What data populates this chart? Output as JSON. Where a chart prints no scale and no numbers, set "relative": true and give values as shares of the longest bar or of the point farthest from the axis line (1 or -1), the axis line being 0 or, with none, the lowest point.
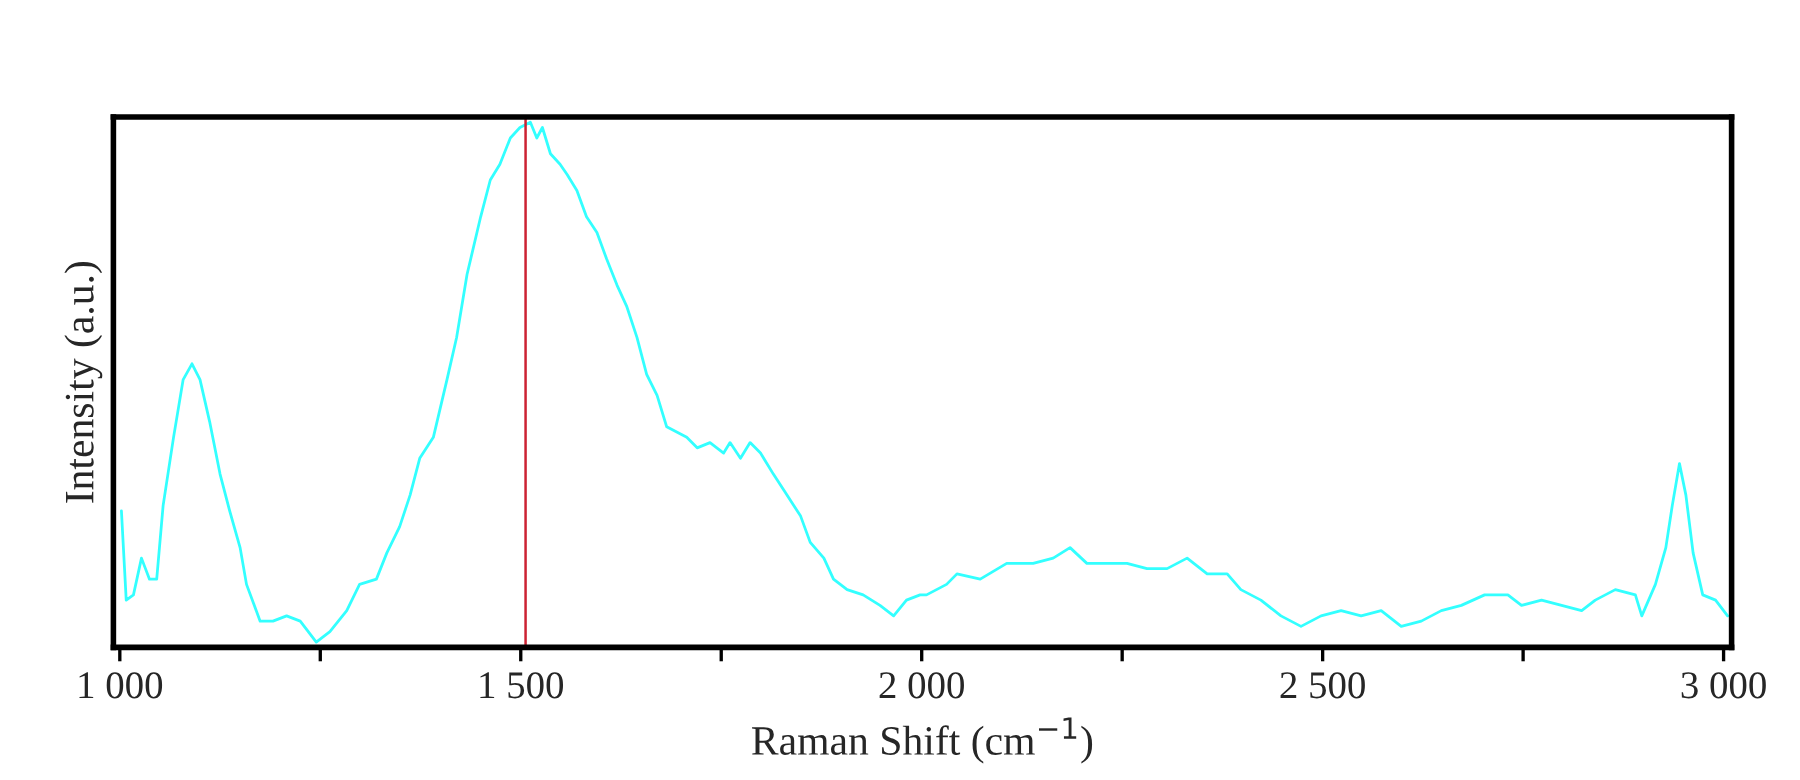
{
  "chart_data": {
    "type": "line",
    "xlabel": "Raman Shift (cm$^{−1}$)",
    "ylabel": "Intensity (a.u.)",
    "relative": true,
    "x": [
      1002,
      1008,
      1017,
      1027,
      1037,
      1046,
      1054,
      1067,
      1079,
      1090,
      1100,
      1112,
      1125,
      1137,
      1150,
      1158,
      1175,
      1191,
      1208,
      1225,
      1245,
      1262,
      1283,
      1299,
      1320,
      1333,
      1349,
      1362,
      1374,
      1391,
      1408,
      1420,
      1433,
      1450,
      1462,
      1474,
      1487,
      1499,
      1512,
      1520,
      1527,
      1537,
      1549,
      1558,
      1570,
      1582,
      1595,
      1607,
      1620,
      1632,
      1645,
      1657,
      1670,
      1682,
      1707,
      1720,
      1736,
      1753,
      1761,
      1774,
      1786,
      1799,
      1815,
      1832,
      1849,
      1861,
      1878,
      1890,
      1907,
      1927,
      1948,
      1965,
      1981,
      1998,
      2006,
      2031,
      2044,
      2073,
      2106,
      2139,
      2164,
      2185,
      2206,
      2231,
      2256,
      2281,
      2306,
      2331,
      2356,
      2381,
      2398,
      2423,
      2448,
      2473,
      2498,
      2523,
      2548,
      2573,
      2598,
      2623,
      2648,
      2673,
      2702,
      2731,
      2748,
      2773,
      2798,
      2823,
      2840,
      2865,
      2890,
      2898,
      2915,
      2928,
      2936,
      2945,
      2953,
      2962,
      2974,
      2990,
      3005
    ],
    "series": [
      {
        "color": "#33ffff",
        "values": [
          0.26,
          0.09,
          0.1,
          0.17,
          0.13,
          0.13,
          0.27,
          0.4,
          0.51,
          0.54,
          0.51,
          0.43,
          0.33,
          0.26,
          0.19,
          0.12,
          0.05,
          0.05,
          0.06,
          0.05,
          0.01,
          0.03,
          0.07,
          0.12,
          0.13,
          0.18,
          0.23,
          0.29,
          0.36,
          0.4,
          0.51,
          0.59,
          0.71,
          0.82,
          0.89,
          0.92,
          0.97,
          0.99,
          1.0,
          0.97,
          0.99,
          0.94,
          0.92,
          0.9,
          0.87,
          0.82,
          0.79,
          0.74,
          0.69,
          0.65,
          0.59,
          0.52,
          0.48,
          0.42,
          0.4,
          0.38,
          0.39,
          0.37,
          0.39,
          0.36,
          0.39,
          0.37,
          0.33,
          0.29,
          0.25,
          0.2,
          0.17,
          0.13,
          0.11,
          0.1,
          0.08,
          0.06,
          0.09,
          0.1,
          0.1,
          0.12,
          0.14,
          0.13,
          0.16,
          0.16,
          0.17,
          0.19,
          0.16,
          0.16,
          0.16,
          0.15,
          0.15,
          0.17,
          0.14,
          0.14,
          0.11,
          0.09,
          0.06,
          0.04,
          0.06,
          0.07,
          0.06,
          0.07,
          0.04,
          0.05,
          0.07,
          0.08,
          0.1,
          0.1,
          0.08,
          0.09,
          0.08,
          0.07,
          0.09,
          0.11,
          0.1,
          0.06,
          0.12,
          0.19,
          0.27,
          0.35,
          0.29,
          0.18,
          0.1,
          0.09,
          0.06
        ]
      }
    ],
    "xlim": [
      992,
      3010
    ],
    "xticks": [
      {
        "value": 1000,
        "label": "1 000"
      },
      {
        "value": 1250,
        "label": null
      },
      {
        "value": 1500,
        "label": "1 500"
      },
      {
        "value": 1750,
        "label": null
      },
      {
        "value": 2000,
        "label": "2 000"
      },
      {
        "value": 2250,
        "label": null
      },
      {
        "value": 2500,
        "label": "2 500"
      },
      {
        "value": 2750,
        "label": null
      },
      {
        "value": 3000,
        "label": "3 000"
      }
    ],
    "ref_lines": [
      {
        "axis": "x",
        "value": 1506,
        "color": "#cc2233"
      }
    ],
    "grid": false,
    "legend": false
  }
}
